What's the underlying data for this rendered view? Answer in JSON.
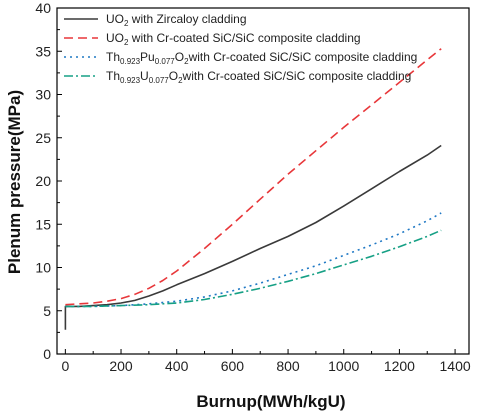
{
  "chart_data": {
    "type": "line",
    "xlabel": "Burnup(MWh/kgU)",
    "ylabel": "Plenum pressure(MPa)",
    "xlim": [
      -30,
      1450
    ],
    "ylim": [
      0,
      40
    ],
    "xticks": [
      0,
      200,
      400,
      600,
      800,
      1000,
      1200,
      1400
    ],
    "yticks": [
      0,
      5,
      10,
      15,
      20,
      25,
      30,
      35,
      40
    ],
    "legend_position": "top-left",
    "grid": false,
    "series": [
      {
        "name": "UO2 with Zircaloy cladding",
        "legend_parts": [
          [
            "UO",
            ""
          ],
          [
            "2",
            "sub"
          ],
          [
            " with Zircaloy cladding",
            ""
          ]
        ],
        "color": "#3a3a3a",
        "dash": "",
        "points": [
          [
            0,
            2.8
          ],
          [
            0,
            5.5
          ],
          [
            3,
            5.5
          ],
          [
            50,
            5.5
          ],
          [
            100,
            5.6
          ],
          [
            150,
            5.7
          ],
          [
            200,
            5.9
          ],
          [
            250,
            6.2
          ],
          [
            300,
            6.7
          ],
          [
            350,
            7.3
          ],
          [
            400,
            8.0
          ],
          [
            500,
            9.3
          ],
          [
            600,
            10.7
          ],
          [
            700,
            12.2
          ],
          [
            800,
            13.6
          ],
          [
            900,
            15.2
          ],
          [
            1000,
            17.1
          ],
          [
            1100,
            19.1
          ],
          [
            1200,
            21.1
          ],
          [
            1300,
            23.0
          ],
          [
            1350,
            24.1
          ]
        ]
      },
      {
        "name": "UO2 with Cr-coated SiC/SiC composite cladding",
        "legend_parts": [
          [
            "UO",
            ""
          ],
          [
            "2",
            "sub"
          ],
          [
            " with Cr-coated SiC/SiC composite cladding",
            ""
          ]
        ],
        "color": "#e8373a",
        "dash": "9 5",
        "points": [
          [
            0,
            5.7
          ],
          [
            50,
            5.8
          ],
          [
            100,
            5.9
          ],
          [
            150,
            6.1
          ],
          [
            200,
            6.4
          ],
          [
            250,
            6.9
          ],
          [
            300,
            7.6
          ],
          [
            350,
            8.5
          ],
          [
            400,
            9.6
          ],
          [
            500,
            12.2
          ],
          [
            600,
            15.0
          ],
          [
            700,
            17.9
          ],
          [
            800,
            20.8
          ],
          [
            900,
            23.5
          ],
          [
            1000,
            26.2
          ],
          [
            1100,
            28.8
          ],
          [
            1200,
            31.4
          ],
          [
            1300,
            34.0
          ],
          [
            1350,
            35.3
          ]
        ]
      },
      {
        "name": "Th0.923Pu0.077O2with Cr-coated SiC/SiC composite cladding",
        "legend_parts": [
          [
            "Th",
            ""
          ],
          [
            "0.923",
            "sub"
          ],
          [
            "Pu",
            ""
          ],
          [
            "0.077",
            "sub"
          ],
          [
            "O",
            ""
          ],
          [
            "2",
            "sub"
          ],
          [
            "with Cr-coated SiC/SiC composite cladding",
            ""
          ]
        ],
        "color": "#1f78c4",
        "dash": "2 4",
        "points": [
          [
            0,
            5.5
          ],
          [
            100,
            5.5
          ],
          [
            200,
            5.6
          ],
          [
            300,
            5.8
          ],
          [
            400,
            6.1
          ],
          [
            500,
            6.6
          ],
          [
            600,
            7.3
          ],
          [
            700,
            8.2
          ],
          [
            800,
            9.2
          ],
          [
            900,
            10.2
          ],
          [
            1000,
            11.4
          ],
          [
            1100,
            12.6
          ],
          [
            1200,
            13.9
          ],
          [
            1300,
            15.4
          ],
          [
            1350,
            16.3
          ]
        ]
      },
      {
        "name": "Th0.923U0.077O2with Cr-coated SiC/SiC composite cladding",
        "legend_parts": [
          [
            "Th",
            ""
          ],
          [
            "0.923",
            "sub"
          ],
          [
            "U",
            ""
          ],
          [
            "0.077",
            "sub"
          ],
          [
            "O",
            ""
          ],
          [
            "2",
            "sub"
          ],
          [
            "with Cr-coated SiC/SiC composite cladding",
            ""
          ]
        ],
        "color": "#16a085",
        "dash": "9 3 2 3",
        "points": [
          [
            0,
            5.5
          ],
          [
            100,
            5.5
          ],
          [
            200,
            5.6
          ],
          [
            300,
            5.7
          ],
          [
            400,
            5.9
          ],
          [
            500,
            6.3
          ],
          [
            600,
            6.9
          ],
          [
            700,
            7.6
          ],
          [
            800,
            8.4
          ],
          [
            900,
            9.3
          ],
          [
            1000,
            10.3
          ],
          [
            1100,
            11.3
          ],
          [
            1200,
            12.4
          ],
          [
            1300,
            13.6
          ],
          [
            1350,
            14.3
          ]
        ]
      }
    ]
  }
}
